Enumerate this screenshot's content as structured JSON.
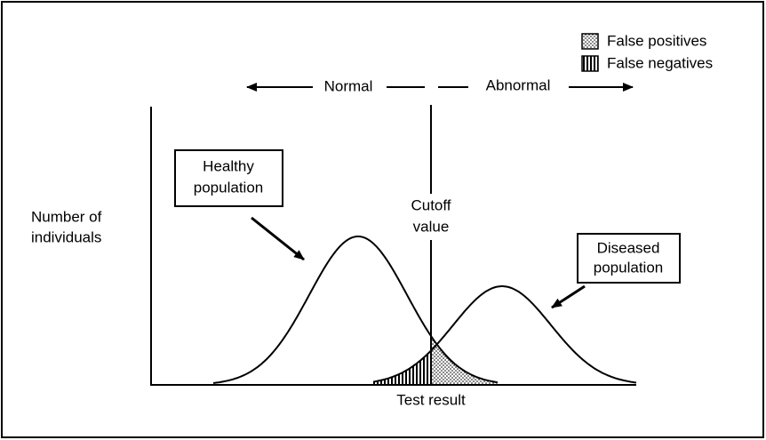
{
  "legend": {
    "items": [
      {
        "label": "False positives"
      },
      {
        "label": "False negatives"
      }
    ]
  },
  "direction_labels": {
    "left": "Normal",
    "right": "Abnormal"
  },
  "healthy_label": [
    "Healthy",
    "population"
  ],
  "diseased_label": [
    "Diseased",
    "population"
  ],
  "cutoff_label": [
    "Cutoff",
    "value"
  ],
  "y_axis_label": [
    "Number of",
    "individuals"
  ],
  "x_axis_label": "Test result"
}
